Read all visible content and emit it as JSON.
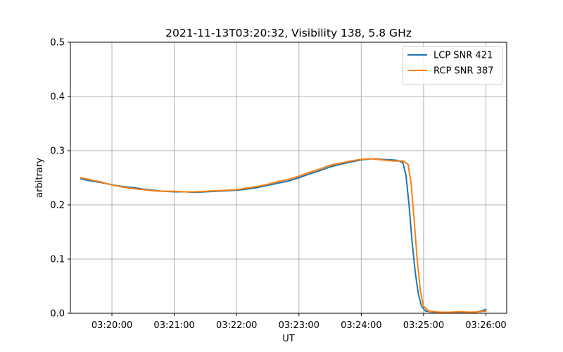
{
  "chart_data": {
    "type": "line",
    "title": "2021-11-13T03:20:32, Visibility 138, 5.8 GHz",
    "xlabel": "UT",
    "ylabel": "arbitrary",
    "xlim": [
      "03:19:20",
      "03:26:20"
    ],
    "ylim": [
      0.0,
      0.5
    ],
    "x_ticks": [
      "03:20:00",
      "03:21:00",
      "03:22:00",
      "03:23:00",
      "03:24:00",
      "03:25:00",
      "03:26:00"
    ],
    "y_ticks": [
      "0.0",
      "0.1",
      "0.2",
      "0.3",
      "0.4",
      "0.5"
    ],
    "grid": true,
    "legend_position": "top-right",
    "series": [
      {
        "name": "LCP SNR 421",
        "color": "#1f77b4",
        "points": [
          [
            "03:19:30",
            0.248
          ],
          [
            "03:19:40",
            0.244
          ],
          [
            "03:19:50",
            0.241
          ],
          [
            "03:20:00",
            0.237
          ],
          [
            "03:20:10",
            0.234
          ],
          [
            "03:20:20",
            0.232
          ],
          [
            "03:20:30",
            0.229
          ],
          [
            "03:20:40",
            0.227
          ],
          [
            "03:20:50",
            0.225
          ],
          [
            "03:21:00",
            0.224
          ],
          [
            "03:21:10",
            0.224
          ],
          [
            "03:21:20",
            0.223
          ],
          [
            "03:21:30",
            0.224
          ],
          [
            "03:21:40",
            0.225
          ],
          [
            "03:21:50",
            0.226
          ],
          [
            "03:22:00",
            0.227
          ],
          [
            "03:22:10",
            0.229
          ],
          [
            "03:22:20",
            0.232
          ],
          [
            "03:22:30",
            0.236
          ],
          [
            "03:22:40",
            0.24
          ],
          [
            "03:22:50",
            0.244
          ],
          [
            "03:23:00",
            0.25
          ],
          [
            "03:23:10",
            0.257
          ],
          [
            "03:23:20",
            0.263
          ],
          [
            "03:23:30",
            0.27
          ],
          [
            "03:23:40",
            0.275
          ],
          [
            "03:23:50",
            0.279
          ],
          [
            "03:24:00",
            0.283
          ],
          [
            "03:24:10",
            0.285
          ],
          [
            "03:24:20",
            0.284
          ],
          [
            "03:24:30",
            0.283
          ],
          [
            "03:24:35",
            0.282
          ],
          [
            "03:24:40",
            0.278
          ],
          [
            "03:24:43",
            0.255
          ],
          [
            "03:24:46",
            0.2
          ],
          [
            "03:24:49",
            0.13
          ],
          [
            "03:24:52",
            0.075
          ],
          [
            "03:24:55",
            0.035
          ],
          [
            "03:24:58",
            0.013
          ],
          [
            "03:25:02",
            0.004
          ],
          [
            "03:25:10",
            0.002
          ],
          [
            "03:25:20",
            0.002
          ],
          [
            "03:25:30",
            0.002
          ],
          [
            "03:25:40",
            0.002
          ],
          [
            "03:25:50",
            0.002
          ],
          [
            "03:25:55",
            0.004
          ],
          [
            "03:26:00",
            0.007
          ]
        ]
      },
      {
        "name": "RCP SNR 387",
        "color": "#ff7f0e",
        "points": [
          [
            "03:19:30",
            0.25
          ],
          [
            "03:19:40",
            0.246
          ],
          [
            "03:19:50",
            0.242
          ],
          [
            "03:20:00",
            0.237
          ],
          [
            "03:20:10",
            0.233
          ],
          [
            "03:20:20",
            0.23
          ],
          [
            "03:20:30",
            0.228
          ],
          [
            "03:20:40",
            0.226
          ],
          [
            "03:20:50",
            0.225
          ],
          [
            "03:21:00",
            0.225
          ],
          [
            "03:21:10",
            0.224
          ],
          [
            "03:21:20",
            0.224
          ],
          [
            "03:21:30",
            0.225
          ],
          [
            "03:21:40",
            0.226
          ],
          [
            "03:21:50",
            0.227
          ],
          [
            "03:22:00",
            0.228
          ],
          [
            "03:22:10",
            0.231
          ],
          [
            "03:22:20",
            0.234
          ],
          [
            "03:22:30",
            0.238
          ],
          [
            "03:22:40",
            0.243
          ],
          [
            "03:22:50",
            0.247
          ],
          [
            "03:23:00",
            0.253
          ],
          [
            "03:23:10",
            0.26
          ],
          [
            "03:23:20",
            0.266
          ],
          [
            "03:23:30",
            0.273
          ],
          [
            "03:23:40",
            0.277
          ],
          [
            "03:23:50",
            0.281
          ],
          [
            "03:24:00",
            0.284
          ],
          [
            "03:24:10",
            0.285
          ],
          [
            "03:24:20",
            0.283
          ],
          [
            "03:24:30",
            0.281
          ],
          [
            "03:24:40",
            0.281
          ],
          [
            "03:24:45",
            0.275
          ],
          [
            "03:24:48",
            0.24
          ],
          [
            "03:24:51",
            0.17
          ],
          [
            "03:24:54",
            0.095
          ],
          [
            "03:24:57",
            0.04
          ],
          [
            "03:25:00",
            0.013
          ],
          [
            "03:25:05",
            0.004
          ],
          [
            "03:25:15",
            0.002
          ],
          [
            "03:25:25",
            0.002
          ],
          [
            "03:25:35",
            0.003
          ],
          [
            "03:25:45",
            0.002
          ],
          [
            "03:25:55",
            0.003
          ],
          [
            "03:26:00",
            0.004
          ]
        ]
      }
    ]
  }
}
